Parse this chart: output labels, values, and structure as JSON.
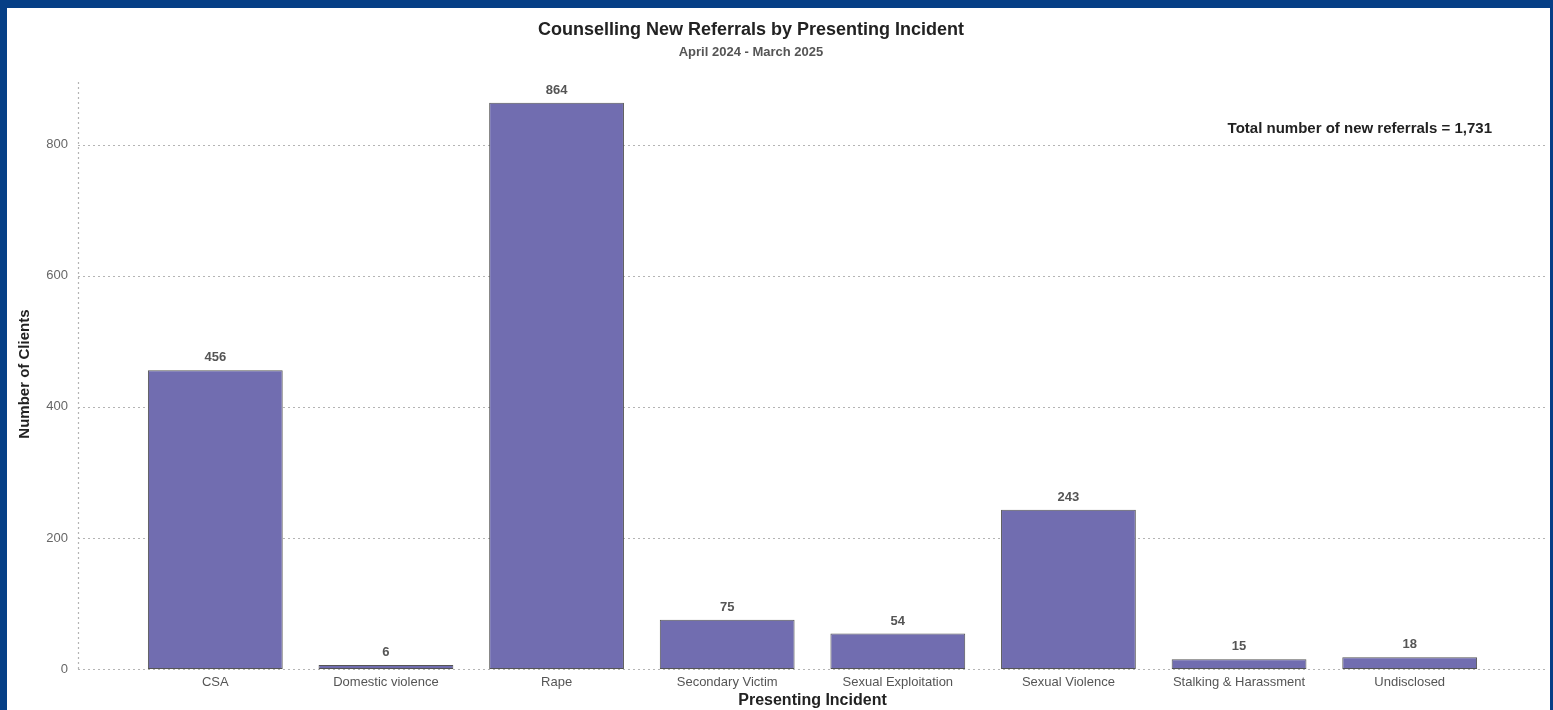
{
  "chart_data": {
    "type": "bar",
    "title": "Counselling New Referrals by Presenting Incident",
    "subtitle": "April 2024 - March 2025",
    "xlabel": "Presenting Incident",
    "ylabel": "Number of Clients",
    "annotations": [
      "Total number of new referrals = 1,731"
    ],
    "categories": [
      "CSA",
      "Domestic violence",
      "Rape",
      "Secondary Victim",
      "Sexual Exploitation",
      "Sexual Violence",
      "Stalking & Harassment",
      "Undisclosed"
    ],
    "values": [
      456,
      6,
      864,
      75,
      54,
      243,
      15,
      18
    ],
    "color": "#716db0",
    "ylim": [
      0,
      900
    ],
    "yticks": [
      0,
      200,
      400,
      600,
      800
    ],
    "grid": "y",
    "data_labels": true
  }
}
